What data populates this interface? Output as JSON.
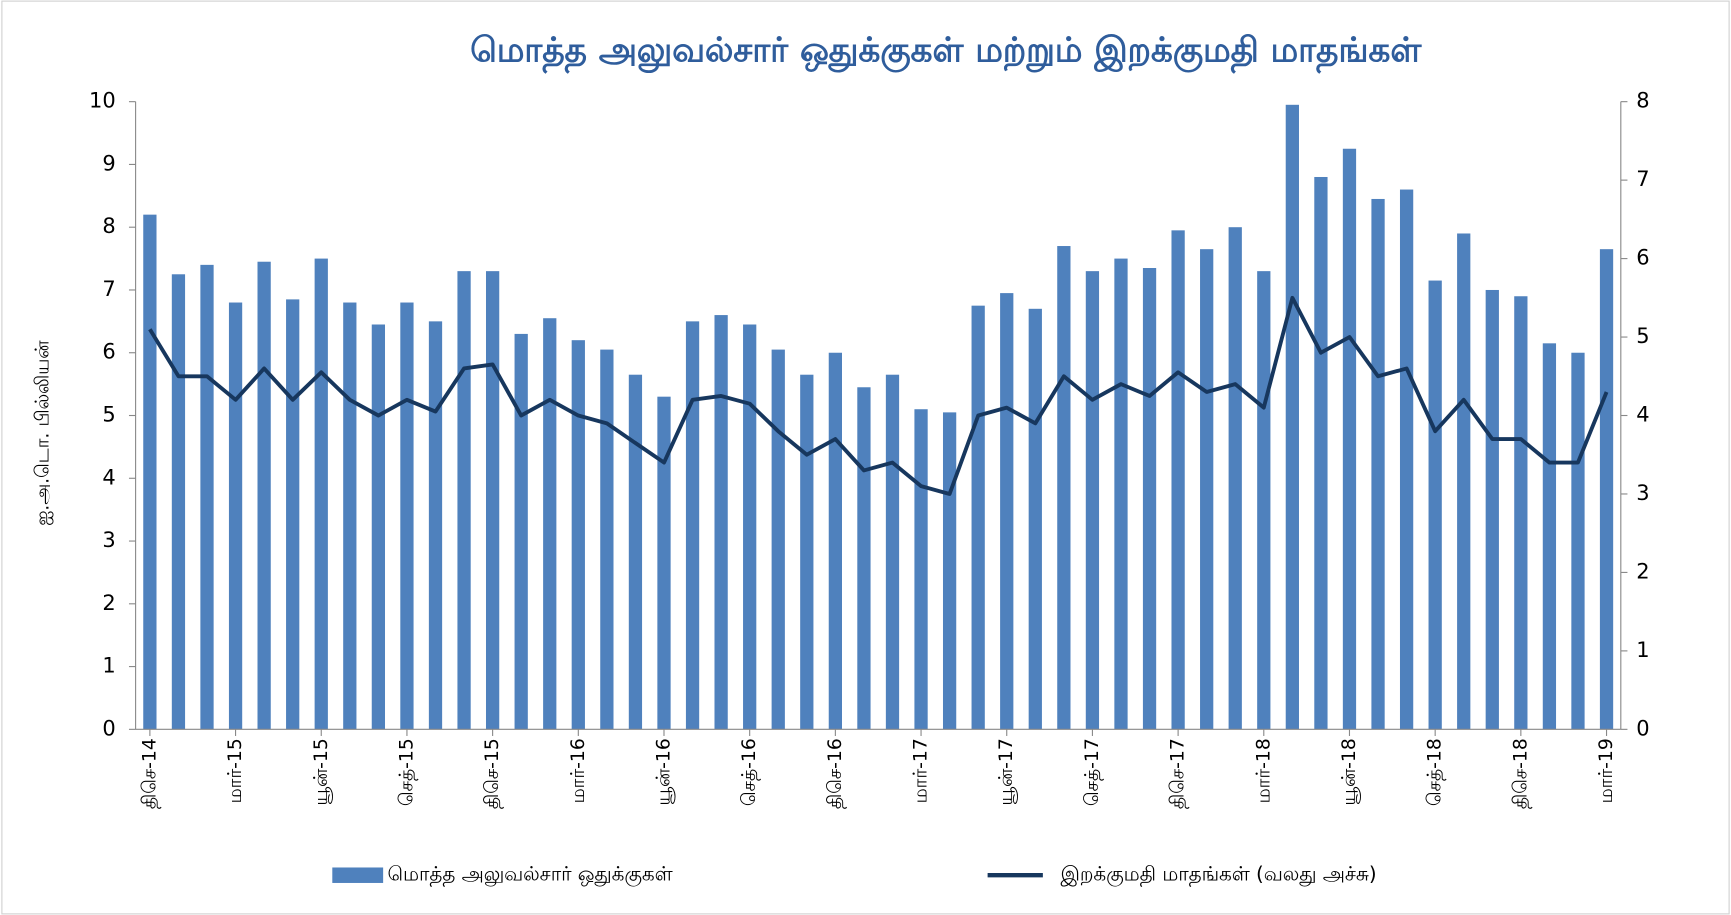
{
  "chart_data": {
    "type": "bar_line",
    "title": "மொத்த அலுவல்சார் ஒதுக்குகள் மற்றும் இறக்குமதி மாதங்கள்",
    "y_label": "ஐ.அ.டொ. பில்லியன்",
    "categories": [
      "திசெ-14",
      null,
      null,
      "மார்-15",
      null,
      null,
      "யூன்-15",
      null,
      null,
      "செத்-15",
      null,
      null,
      "திசெ-15",
      null,
      null,
      "மார்-16",
      null,
      null,
      "யூன்-16",
      null,
      null,
      "செத்-16",
      null,
      null,
      "திசெ-16",
      null,
      null,
      "மார்-17",
      null,
      null,
      "யூன்-17",
      null,
      null,
      "செத்-17",
      null,
      null,
      "திசெ-17",
      null,
      null,
      "மார்-18",
      null,
      null,
      "யூன்-18",
      null,
      null,
      "செத்-18",
      null,
      null,
      "திசெ-18",
      null,
      null,
      "மார்-19"
    ],
    "series": [
      {
        "name": "மொத்த அலுவல்சார் ஒதுக்குகள்",
        "type": "bar",
        "color": "#4f81bd",
        "values": [
          8.2,
          7.25,
          7.4,
          6.8,
          7.45,
          6.85,
          7.5,
          6.8,
          6.45,
          6.8,
          6.5,
          7.3,
          7.3,
          6.3,
          6.55,
          6.2,
          6.05,
          5.65,
          5.3,
          6.5,
          6.6,
          6.45,
          6.05,
          5.65,
          6.0,
          5.45,
          5.65,
          5.1,
          5.05,
          6.75,
          6.95,
          6.7,
          7.7,
          7.3,
          7.5,
          7.35,
          7.95,
          7.65,
          8.0,
          7.3,
          9.95,
          8.8,
          9.25,
          8.45,
          8.6,
          7.15,
          7.9,
          7.0,
          6.9,
          6.15,
          6.0,
          7.65
        ]
      },
      {
        "name": "இறக்குமதி மாதங்கள் (வலது அச்சு)",
        "type": "line",
        "axis": "y2",
        "color": "#17375e",
        "values": [
          5.1,
          4.5,
          4.5,
          4.2,
          4.6,
          4.2,
          4.55,
          4.2,
          4.0,
          4.2,
          4.05,
          4.6,
          4.65,
          4.0,
          4.2,
          4.0,
          3.9,
          3.65,
          3.4,
          4.2,
          4.25,
          4.15,
          3.8,
          3.5,
          3.7,
          3.3,
          3.4,
          3.1,
          3.0,
          4.0,
          4.1,
          3.9,
          4.5,
          4.2,
          4.4,
          4.25,
          4.55,
          4.3,
          4.4,
          4.1,
          5.5,
          4.8,
          5.0,
          4.5,
          4.6,
          3.8,
          4.2,
          3.7,
          3.7,
          3.4,
          3.4,
          4.3
        ]
      }
    ],
    "ylim": [
      0,
      10
    ],
    "yticks": [
      0,
      1,
      2,
      3,
      4,
      5,
      6,
      7,
      8,
      9,
      10
    ],
    "y2lim": [
      0,
      8
    ],
    "y2ticks": [
      0,
      1,
      2,
      3,
      4,
      5,
      6,
      7,
      8
    ],
    "legend": "bottom"
  }
}
